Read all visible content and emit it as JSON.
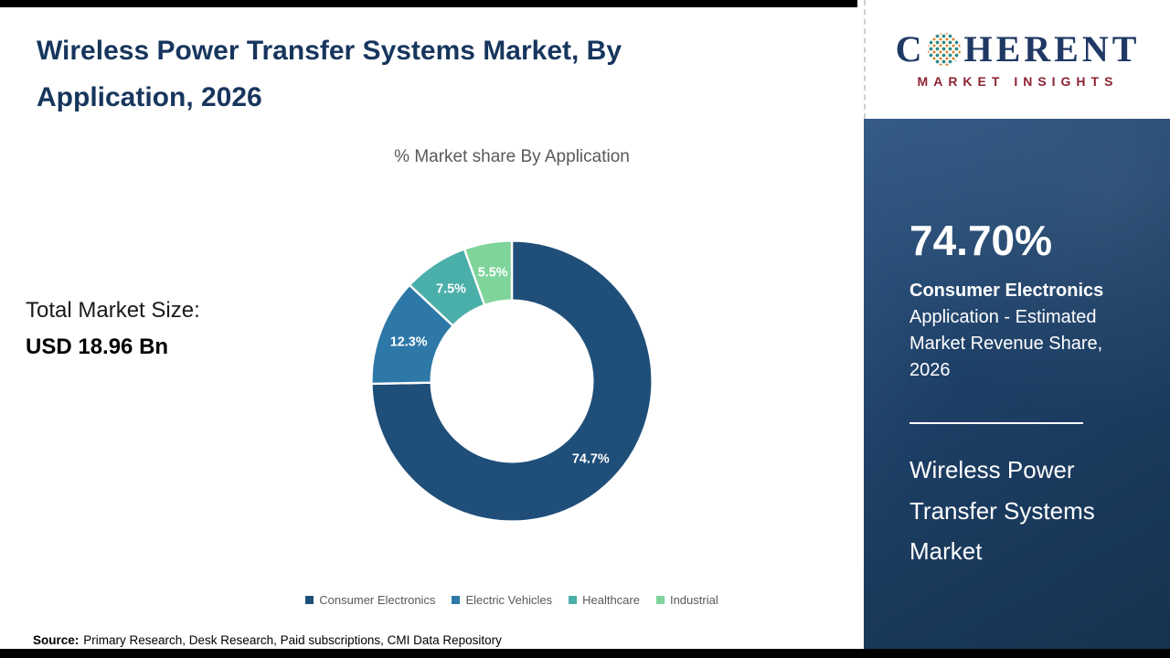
{
  "header": {
    "title": "Wireless Power Transfer Systems Market, By Application, 2026"
  },
  "left_panel": {
    "market_size_label": "Total Market Size:",
    "market_size_value": "USD 18.96 Bn"
  },
  "chart_data": {
    "type": "pie",
    "title": "% Market share By Application",
    "categories": [
      "Consumer Electronics",
      "Electric Vehicles",
      "Healthcare",
      "Industrial"
    ],
    "values": [
      74.7,
      12.3,
      7.5,
      5.5
    ],
    "labels": [
      "74.7%",
      "12.3%",
      "7.5%",
      "5.5%"
    ],
    "colors": [
      "#1F4E79",
      "#2E78A8",
      "#4BAFA9",
      "#7FD49B"
    ],
    "donut_hole_ratio": 0.575,
    "start_angle_deg": 0,
    "direction": "clockwise",
    "legend_position": "bottom",
    "label_color": "#FFFFFF"
  },
  "sidebar": {
    "stat_value": "74.70%",
    "stat_title": "Consumer Electronics",
    "stat_description": "Application - Estimated Market Revenue Share, 2026",
    "market_name": "Wireless Power Transfer Systems Market"
  },
  "logo": {
    "letter_c": "C",
    "letters_rest": "HERENT",
    "tagline": "MARKET INSIGHTS"
  },
  "footer": {
    "source_label": "Source:",
    "source_text": "Primary Research, Desk Research, Paid subscriptions, CMI Data Repository"
  }
}
